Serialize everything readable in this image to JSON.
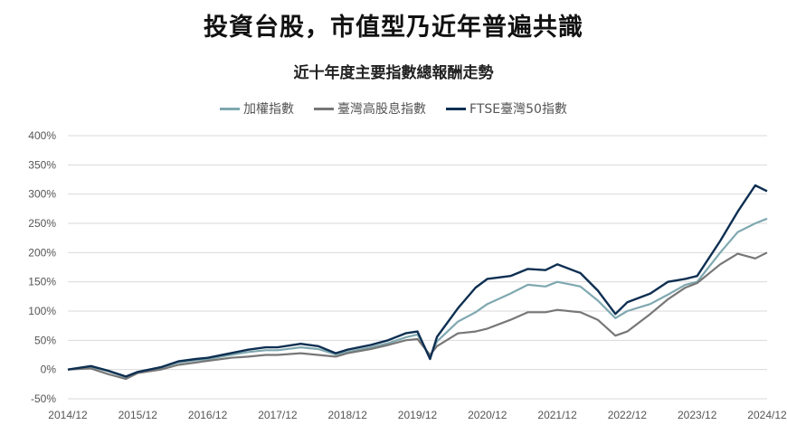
{
  "chart_data": {
    "type": "line",
    "title": "投資台股，市值型乃近年普遍共識",
    "subtitle": "近十年度主要指數總報酬走勢",
    "xlabel": "",
    "ylabel": "",
    "x_ticks": [
      "2014/12",
      "2015/12",
      "2016/12",
      "2017/12",
      "2018/12",
      "2019/12",
      "2020/12",
      "2021/12",
      "2022/12",
      "2023/12",
      "2024/12"
    ],
    "y_ticks": [
      "400%",
      "350%",
      "300%",
      "250%",
      "200%",
      "150%",
      "100%",
      "50%",
      "0%",
      "-50%"
    ],
    "ylim": [
      -50,
      400
    ],
    "grid": true,
    "legend_position": "top",
    "x": [
      2014.92,
      2015.25,
      2015.5,
      2015.75,
      2015.92,
      2016.25,
      2016.5,
      2016.75,
      2016.92,
      2017.25,
      2017.5,
      2017.75,
      2017.92,
      2018.25,
      2018.5,
      2018.75,
      2018.92,
      2019.25,
      2019.5,
      2019.75,
      2019.92,
      2020.1,
      2020.2,
      2020.5,
      2020.75,
      2020.92,
      2021.25,
      2021.5,
      2021.75,
      2021.92,
      2022.25,
      2022.5,
      2022.75,
      2022.92,
      2023.25,
      2023.5,
      2023.75,
      2023.92,
      2024.25,
      2024.5,
      2024.75,
      2024.92
    ],
    "series": [
      {
        "name": "加權指數",
        "color": "#7fa8b0",
        "values": [
          0,
          5,
          -3,
          -13,
          -5,
          3,
          12,
          16,
          18,
          25,
          30,
          33,
          33,
          38,
          35,
          26,
          30,
          38,
          45,
          55,
          60,
          22,
          48,
          82,
          98,
          112,
          130,
          145,
          142,
          150,
          142,
          118,
          88,
          100,
          112,
          128,
          145,
          150,
          200,
          235,
          250,
          258
        ]
      },
      {
        "name": "臺灣高股息指數",
        "color": "#777777",
        "values": [
          0,
          2,
          -8,
          -16,
          -6,
          0,
          8,
          12,
          15,
          20,
          22,
          25,
          25,
          28,
          25,
          22,
          28,
          35,
          42,
          50,
          52,
          25,
          40,
          62,
          65,
          70,
          85,
          98,
          98,
          102,
          98,
          85,
          58,
          65,
          95,
          120,
          140,
          148,
          180,
          198,
          190,
          200
        ]
      },
      {
        "name": "FTSE臺灣50指數",
        "color": "#0e2f52",
        "values": [
          0,
          6,
          -2,
          -12,
          -4,
          4,
          14,
          18,
          20,
          28,
          34,
          38,
          38,
          44,
          40,
          28,
          34,
          42,
          50,
          62,
          65,
          18,
          56,
          105,
          140,
          155,
          160,
          172,
          170,
          180,
          165,
          135,
          95,
          115,
          130,
          150,
          155,
          160,
          220,
          270,
          315,
          305
        ]
      }
    ]
  }
}
